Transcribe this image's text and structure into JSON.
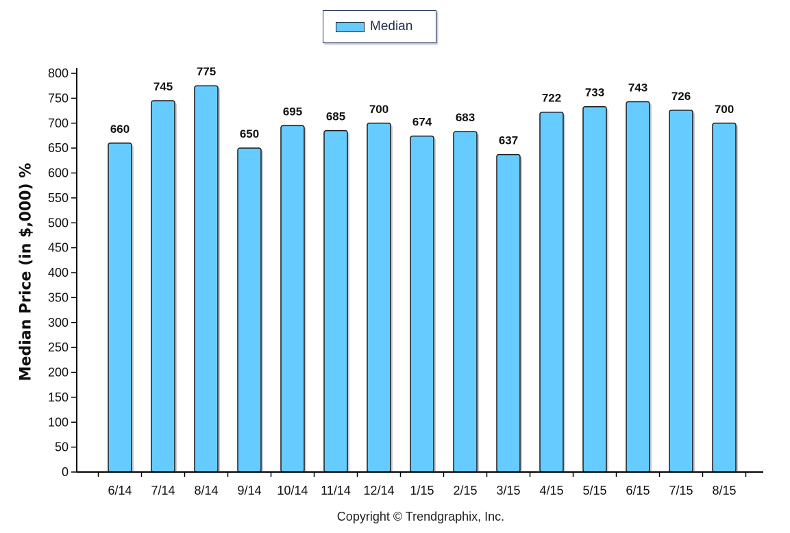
{
  "chart_data": {
    "type": "bar",
    "categories": [
      "6/14",
      "7/14",
      "8/14",
      "9/14",
      "10/14",
      "11/14",
      "12/14",
      "1/15",
      "2/15",
      "3/15",
      "4/15",
      "5/15",
      "6/15",
      "7/15",
      "8/15"
    ],
    "series": [
      {
        "name": "Median",
        "values": [
          660,
          745,
          775,
          650,
          695,
          685,
          700,
          674,
          683,
          637,
          722,
          733,
          743,
          726,
          700
        ]
      }
    ],
    "ylabel": "Median Price (in $,000) %",
    "xlabel": "",
    "ylim": [
      0,
      800
    ],
    "yticks": [
      "0",
      "50",
      "100",
      "150",
      "200",
      "250",
      "300",
      "350",
      "400",
      "450",
      "500",
      "550",
      "600",
      "650",
      "700",
      "750",
      "800"
    ],
    "data_labels": [
      "660",
      "745",
      "775",
      "650",
      "695",
      "685",
      "700",
      "674",
      "683",
      "637",
      "722",
      "733",
      "743",
      "726",
      "700"
    ],
    "grid": false,
    "legend_position": "top-center",
    "bar_color": "#66ccff",
    "bar_outline_color": "#1a1a1a"
  },
  "footer": {
    "copyright": "Copyright © Trendgraphix, Inc."
  }
}
